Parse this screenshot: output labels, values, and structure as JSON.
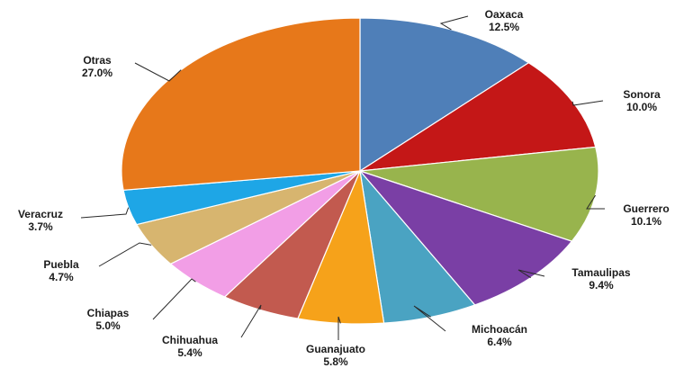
{
  "chart_data": {
    "type": "pie",
    "title": "",
    "slices": [
      {
        "name": "Oaxaca",
        "value": 12.5,
        "label": "12.5%",
        "color": "#4f7fb8"
      },
      {
        "name": "Sonora",
        "value": 10.0,
        "label": "10.0%",
        "color": "#c41717"
      },
      {
        "name": "Guerrero",
        "value": 10.1,
        "label": "10.1%",
        "color": "#98b44d"
      },
      {
        "name": "Tamaulipas",
        "value": 9.4,
        "label": "9.4%",
        "color": "#7a3fa5"
      },
      {
        "name": "Michoacán",
        "value": 6.4,
        "label": "6.4%",
        "color": "#4aa3c2"
      },
      {
        "name": "Guanajuato",
        "value": 5.8,
        "label": "5.8%",
        "color": "#f6a21a"
      },
      {
        "name": "Chihuahua",
        "value": 5.4,
        "label": "5.4%",
        "color": "#c25a4f"
      },
      {
        "name": "Chiapas",
        "value": 5.0,
        "label": "5.0%",
        "color": "#f29ee6"
      },
      {
        "name": "Puebla",
        "value": 4.7,
        "label": "4.7%",
        "color": "#d7b56f"
      },
      {
        "name": "Veracruz",
        "value": 3.7,
        "label": "3.7%",
        "color": "#1ea6e6"
      },
      {
        "name": "Otras",
        "value": 27.0,
        "label": "27.0%",
        "color": "#e7781a"
      }
    ],
    "start": "top",
    "direction": "clockwise",
    "legend": "none",
    "data_labels": "outside with leader lines"
  }
}
